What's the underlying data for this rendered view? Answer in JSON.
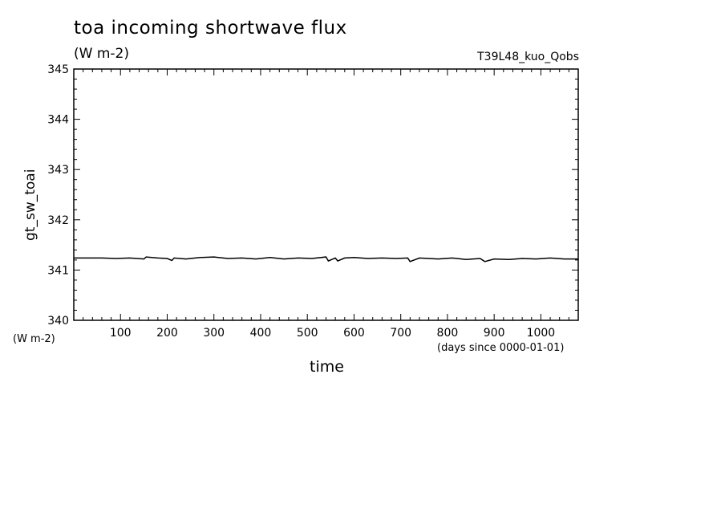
{
  "chart_data": {
    "type": "line",
    "title": "toa incoming shortwave flux",
    "subtitle": "(W m-2)",
    "run_label": "T39L48_kuo_Qobs",
    "ylabel": "gt_sw_toai",
    "yunit": "(W m-2)",
    "xlabel": "time",
    "xunit": "(days since 0000-01-01)",
    "xlim": [
      0,
      1080
    ],
    "ylim": [
      340,
      345
    ],
    "xticks": [
      100,
      200,
      300,
      400,
      500,
      600,
      700,
      800,
      900,
      1000
    ],
    "yticks": [
      340,
      341,
      342,
      343,
      344,
      345
    ],
    "grid": false,
    "series": [
      {
        "x": [
          0,
          30,
          60,
          90,
          120,
          150,
          155,
          180,
          200,
          210,
          215,
          240,
          270,
          300,
          330,
          360,
          390,
          420,
          450,
          480,
          510,
          540,
          545,
          560,
          565,
          580,
          600,
          630,
          660,
          690,
          715,
          720,
          740,
          780,
          810,
          840,
          870,
          880,
          900,
          930,
          960,
          990,
          1020,
          1050,
          1080
        ],
        "y": [
          341.24,
          341.24,
          341.24,
          341.23,
          341.24,
          341.22,
          341.26,
          341.24,
          341.23,
          341.19,
          341.24,
          341.22,
          341.25,
          341.26,
          341.23,
          341.24,
          341.22,
          341.25,
          341.22,
          341.24,
          341.23,
          341.26,
          341.18,
          341.24,
          341.18,
          341.24,
          341.25,
          341.23,
          341.24,
          341.23,
          341.24,
          341.17,
          341.24,
          341.22,
          341.24,
          341.21,
          341.23,
          341.17,
          341.22,
          341.21,
          341.23,
          341.22,
          341.24,
          341.22,
          341.22
        ]
      }
    ]
  }
}
